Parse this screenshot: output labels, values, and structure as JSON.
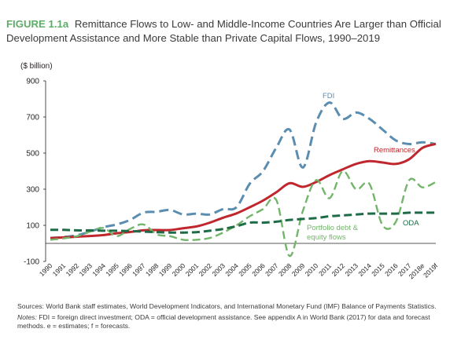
{
  "figure": {
    "label": "FIGURE 1.1a",
    "title": "Remittance Flows to Low- and Middle-Income Countries Are Larger than Official Development Assistance and More Stable than Private Capital Flows, 1990–2019"
  },
  "chart_data": {
    "type": "line",
    "ylabel": "($ billion)",
    "xlabel": "",
    "ylim": [
      -100,
      900
    ],
    "yticks": [
      -100,
      100,
      300,
      500,
      700,
      900
    ],
    "grid": false,
    "legend": "inline labels",
    "categories": [
      "1990",
      "1991",
      "1992",
      "1993",
      "1994",
      "1995",
      "1996",
      "1997",
      "1998",
      "1999",
      "2000",
      "2001",
      "2002",
      "2003",
      "2004",
      "2005",
      "2006",
      "2007",
      "2008",
      "2009",
      "2010",
      "2011",
      "2012",
      "2013",
      "2014",
      "2015",
      "2016",
      "2017",
      "2018e",
      "2019f"
    ],
    "series": [
      {
        "name": "FDI",
        "color": "#5b8db0",
        "dash": "12 6",
        "width": 3,
        "values": [
          30,
          35,
          45,
          65,
          90,
          105,
          130,
          170,
          175,
          185,
          160,
          165,
          160,
          190,
          200,
          330,
          400,
          530,
          630,
          420,
          670,
          780,
          690,
          725,
          690,
          630,
          570,
          550,
          560,
          550
        ]
      },
      {
        "name": "Remittances",
        "color": "#c0262d",
        "dash": "",
        "width": 3,
        "values": [
          29,
          33,
          37,
          41,
          46,
          56,
          63,
          72,
          74,
          74,
          84,
          94,
          115,
          142,
          166,
          200,
          237,
          283,
          333,
          313,
          340,
          378,
          410,
          440,
          455,
          448,
          440,
          466,
          529,
          551
        ]
      },
      {
        "name": "Portfolio debt & equity flows",
        "color": "#73b56a",
        "dash": "10 5",
        "width": 2.4,
        "values": [
          20,
          28,
          40,
          65,
          85,
          40,
          80,
          105,
          50,
          40,
          20,
          20,
          30,
          60,
          100,
          150,
          190,
          240,
          -70,
          180,
          350,
          250,
          400,
          300,
          330,
          100,
          120,
          350,
          310,
          340
        ]
      },
      {
        "name": "ODA",
        "color": "#1e6b47",
        "dash": "10 5",
        "width": 3,
        "values": [
          75,
          75,
          72,
          72,
          70,
          70,
          68,
          65,
          62,
          60,
          60,
          62,
          70,
          80,
          95,
          115,
          115,
          120,
          130,
          135,
          140,
          150,
          155,
          160,
          165,
          165,
          165,
          170,
          170,
          170
        ]
      }
    ],
    "series_labels": {
      "FDI": "FDI",
      "Remittances": "Remittances",
      "Portfolio": [
        "Portfolio debt &",
        "equity flows"
      ],
      "ODA": "ODA"
    }
  },
  "notes": {
    "sources_label": "Sources:",
    "sources": "World Bank staff estimates, World Development Indicators, and International Monetary Fund (IMF) Balance of Payments Statistics.",
    "notes_label": "Notes:",
    "notes": "FDI = foreign direct investment; ODA = official development assistance. See appendix A in World Bank (2017) for data and forecast methods. e = estimates; f = forecasts."
  }
}
